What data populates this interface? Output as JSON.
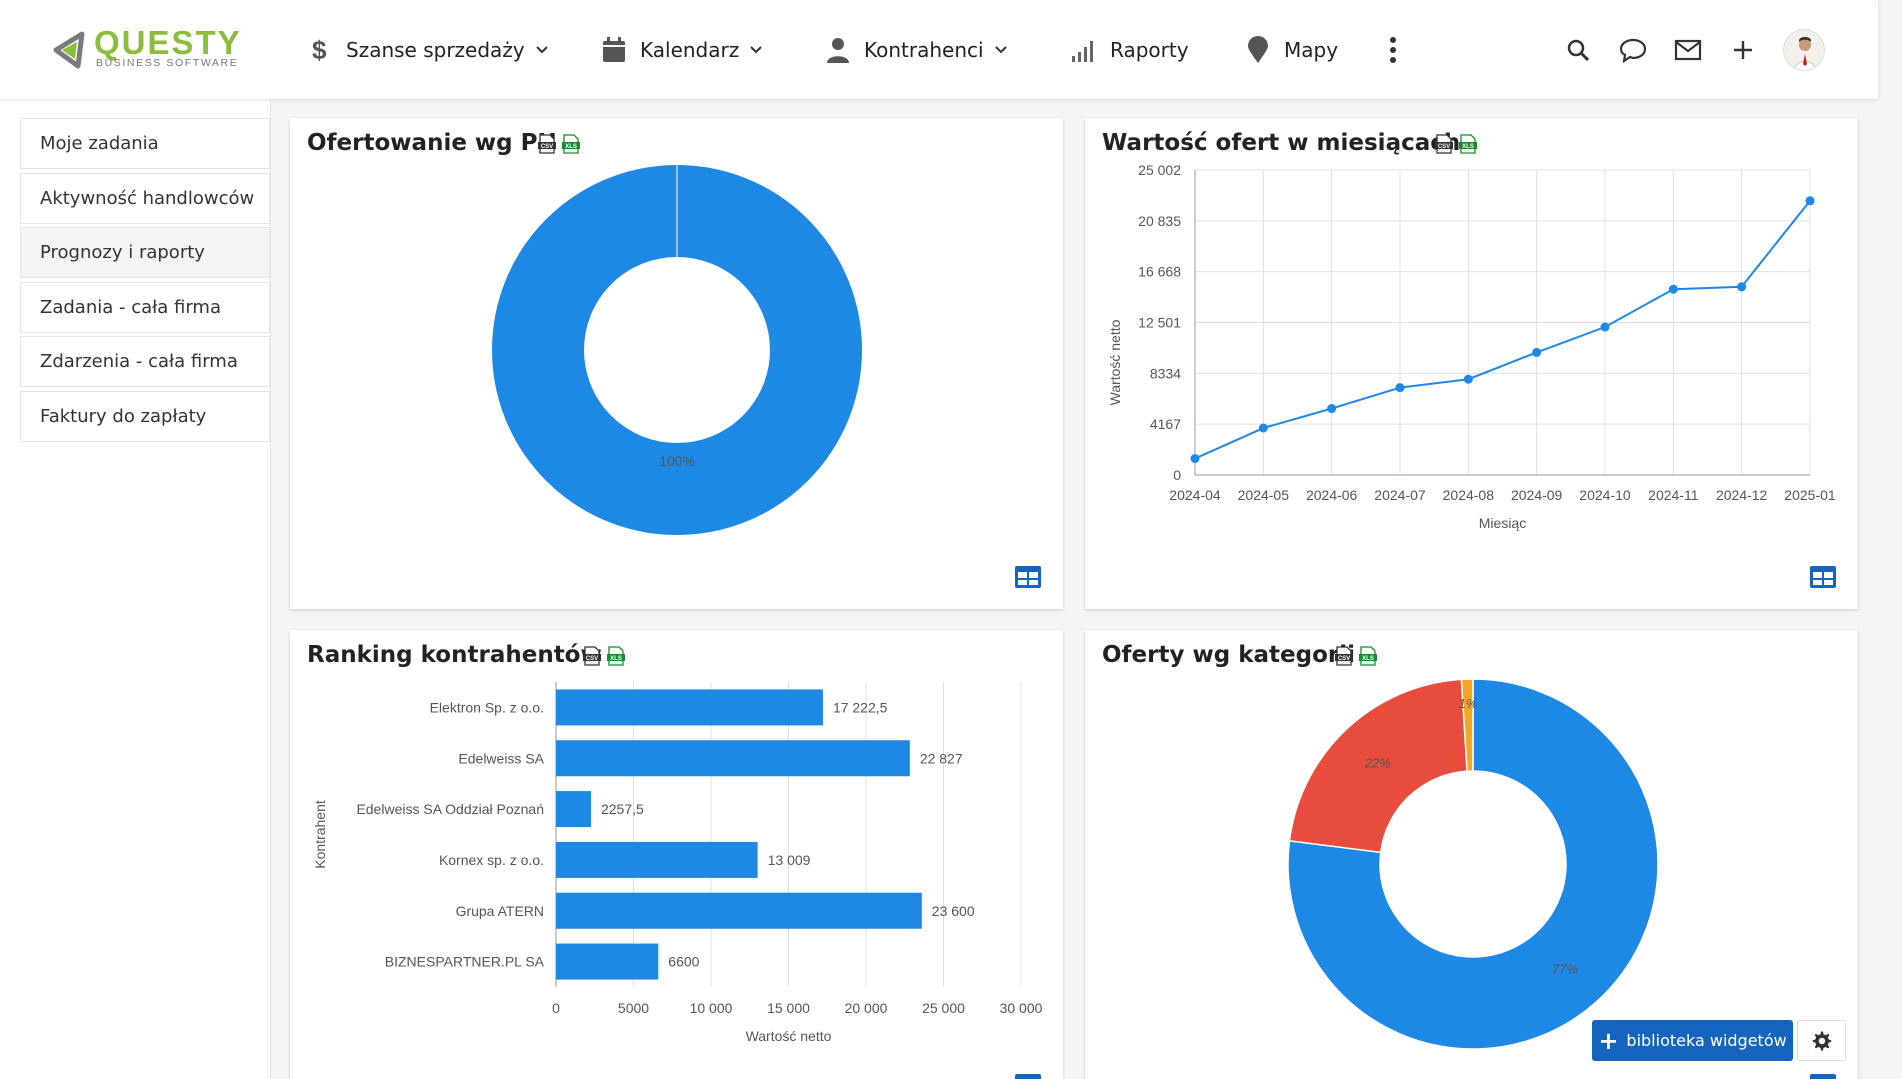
{
  "brand": {
    "name": "QUESTY",
    "tagline": "BUSINESS SOFTWARE",
    "green": "#8bbd3b",
    "gray": "#6f6f6f"
  },
  "nav": {
    "items": [
      {
        "label": "Szanse sprzedaży",
        "icon": "dollar-icon",
        "dropdown": true
      },
      {
        "label": "Kalendarz",
        "icon": "calendar-icon",
        "dropdown": true
      },
      {
        "label": "Kontrahenci",
        "icon": "person-icon",
        "dropdown": true
      },
      {
        "label": "Raporty",
        "icon": "signal-bars-icon",
        "dropdown": false
      },
      {
        "label": "Mapy",
        "icon": "map-pin-icon",
        "dropdown": false
      }
    ],
    "right_icons": [
      "search-icon",
      "chat-icon",
      "mail-icon",
      "plus-icon",
      "avatar"
    ]
  },
  "sidebar": {
    "items": [
      {
        "label": "Moje zadania"
      },
      {
        "label": "Aktywność handlowców"
      },
      {
        "label": "Prognozy i raporty",
        "active": true
      },
      {
        "label": "Zadania - cała firma"
      },
      {
        "label": "Zdarzenia - cała firma"
      },
      {
        "label": "Faktury do zapłaty"
      }
    ]
  },
  "colors": {
    "blue": "#1e88e5",
    "red": "#e74c3c",
    "orange": "#f5a623",
    "accent": "#1565c0"
  },
  "export": {
    "csv": "CSV",
    "xls": "XLS"
  },
  "widgets": {
    "w1": {
      "title": "Ofertowanie wg PH"
    },
    "w2": {
      "title": "Wartość ofert w miesiącach"
    },
    "w3": {
      "title": "Ranking kontrahentów"
    },
    "w4": {
      "title": "Oferty wg kategorii"
    }
  },
  "chart_data": [
    {
      "type": "pie",
      "title": "Ofertowanie wg PH",
      "donut": true,
      "slices": [
        {
          "label": "100%",
          "value": 100,
          "color": "#1e88e5"
        }
      ]
    },
    {
      "type": "line",
      "title": "Wartość ofert w miesiącach",
      "xlabel": "Miesiąc",
      "ylabel": "Wartość netto",
      "categories": [
        "2024-04",
        "2024-05",
        "2024-06",
        "2024-07",
        "2024-08",
        "2024-09",
        "2024-10",
        "2024-11",
        "2024-12",
        "2025-01"
      ],
      "values": [
        1350,
        3850,
        5450,
        7160,
        7850,
        10050,
        12130,
        15230,
        15430,
        22480
      ],
      "yticks": [
        "0",
        "4167",
        "8334",
        "12 501",
        "16 668",
        "20 835",
        "25 002"
      ],
      "ylim": [
        0,
        25002
      ],
      "grid": true
    },
    {
      "type": "bar",
      "orientation": "horizontal",
      "title": "Ranking kontrahentów",
      "xlabel": "Wartość netto",
      "ylabel": "Kontrahent",
      "categories": [
        "Elektron Sp. z o.o.",
        "Edelweiss SA",
        "Edelweiss SA Oddział Poznań",
        "Kornex sp. z o.o.",
        "Grupa ATERN",
        "BIZNESPARTNER.PL SA"
      ],
      "values": [
        17222.5,
        22827,
        2257.5,
        13009,
        23600,
        6600
      ],
      "value_labels": [
        "17 222,5",
        "22 827",
        "2257,5",
        "13 009",
        "23 600",
        "6600"
      ],
      "xticks": [
        "0",
        "5000",
        "10 000",
        "15 000",
        "20 000",
        "25 000",
        "30 000"
      ],
      "xlim": [
        0,
        30000
      ],
      "grid": true
    },
    {
      "type": "pie",
      "title": "Oferty wg kategorii",
      "donut": true,
      "slices": [
        {
          "label": "77%",
          "value": 77,
          "color": "#1e88e5"
        },
        {
          "label": "22%",
          "value": 22,
          "color": "#e74c3c"
        },
        {
          "label": "1%",
          "value": 1,
          "color": "#f5a623"
        }
      ]
    }
  ],
  "footer": {
    "widget_library_label": "biblioteka widgetów"
  }
}
